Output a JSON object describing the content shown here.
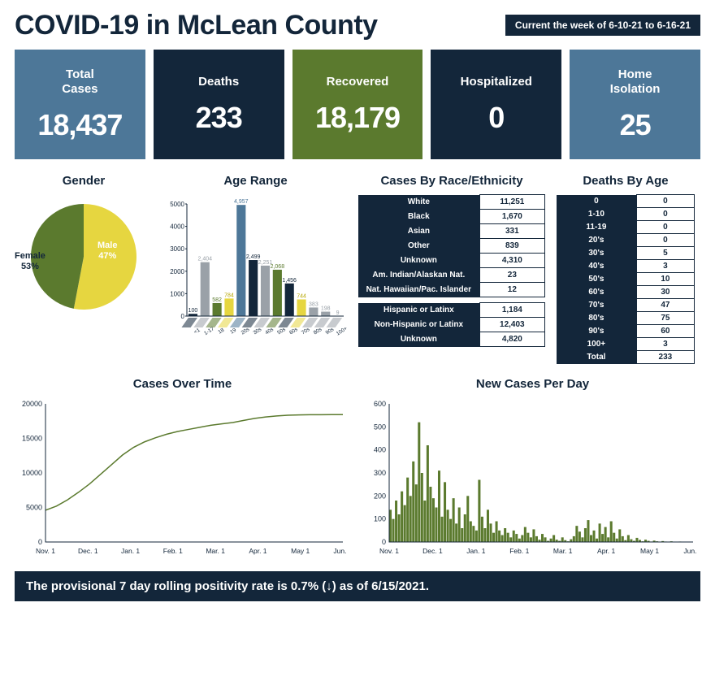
{
  "header": {
    "title": "COVID-19 in McLean County",
    "date_badge": "Current the week of 6-10-21 to 6-16-21"
  },
  "stats": [
    {
      "label": "Total\nCases",
      "value": "18,437",
      "bg": "#4d7798"
    },
    {
      "label": "Deaths",
      "value": "233",
      "bg": "#13263a"
    },
    {
      "label": "Recovered",
      "value": "18,179",
      "bg": "#5b7a2e"
    },
    {
      "label": "Hospitalized",
      "value": "0",
      "bg": "#13263a"
    },
    {
      "label": "Home\nIsolation",
      "value": "25",
      "bg": "#4d7798"
    }
  ],
  "gender": {
    "title": "Gender",
    "slices": [
      {
        "label": "Female",
        "pct": 53,
        "color": "#e6d640"
      },
      {
        "label": "Male",
        "pct": 47,
        "color": "#5b7a2e"
      }
    ]
  },
  "age_range": {
    "title": "Age Range",
    "type": "bar",
    "ylim": [
      0,
      5000
    ],
    "ytick_step": 1000,
    "categories": [
      "<1",
      "1-17",
      "18",
      "19",
      "20s",
      "30s",
      "40s",
      "50s",
      "60s",
      "70s",
      "80s",
      "90s",
      "100+"
    ],
    "values": [
      100,
      2404,
      582,
      784,
      4957,
      2499,
      2251,
      2068,
      1456,
      744,
      383,
      198,
      9
    ],
    "colors": [
      "#13263a",
      "#9aa1a8",
      "#5b7a2e",
      "#e6d640",
      "#4d7798",
      "#13263a",
      "#9aa1a8",
      "#5b7a2e",
      "#13263a",
      "#e6d640",
      "#9aa1a8",
      "#9aa1a8",
      "#9aa1a8"
    ],
    "label_fontsize": 7,
    "axis_color": "#13263a",
    "background": "#ffffff"
  },
  "race": {
    "title": "Cases By Race/Ethnicity",
    "rows": [
      {
        "label": "White",
        "value": "11,251"
      },
      {
        "label": "Black",
        "value": "1,670"
      },
      {
        "label": "Asian",
        "value": "331"
      },
      {
        "label": "Other",
        "value": "839"
      },
      {
        "label": "Unknown",
        "value": "4,310"
      },
      {
        "label": "Am. Indian/Alaskan Nat.",
        "value": "23"
      },
      {
        "label": "Nat. Hawaiian/Pac. Islander",
        "value": "12"
      }
    ],
    "rows2": [
      {
        "label": "Hispanic or Latinx",
        "value": "1,184"
      },
      {
        "label": "Non-Hispanic or Latinx",
        "value": "12,403"
      },
      {
        "label": "Unknown",
        "value": "4,820"
      }
    ]
  },
  "deaths_by_age": {
    "title": "Deaths By Age",
    "rows": [
      {
        "label": "0",
        "value": "0"
      },
      {
        "label": "1-10",
        "value": "0"
      },
      {
        "label": "11-19",
        "value": "0"
      },
      {
        "label": "20's",
        "value": "0"
      },
      {
        "label": "30's",
        "value": "5"
      },
      {
        "label": "40's",
        "value": "3"
      },
      {
        "label": "50's",
        "value": "10"
      },
      {
        "label": "60's",
        "value": "30"
      },
      {
        "label": "70's",
        "value": "47"
      },
      {
        "label": "80's",
        "value": "75"
      },
      {
        "label": "90's",
        "value": "60"
      },
      {
        "label": "100+",
        "value": "3"
      },
      {
        "label": "Total",
        "value": "233"
      }
    ]
  },
  "cases_over_time": {
    "title": "Cases Over Time",
    "type": "line",
    "xlim": [
      "Nov. 1",
      "Jun. 1"
    ],
    "ylim": [
      0,
      20000
    ],
    "ytick_step": 5000,
    "x_ticks": [
      "Nov. 1",
      "Dec. 1",
      "Jan. 1",
      "Feb. 1",
      "Mar. 1",
      "Apr. 1",
      "May 1",
      "Jun. 1"
    ],
    "line_color": "#5b7a2e",
    "axis_color": "#13263a",
    "line_width": 1.5,
    "points_y": [
      4600,
      5200,
      6100,
      7200,
      8400,
      9800,
      11200,
      12600,
      13700,
      14500,
      15100,
      15600,
      16000,
      16300,
      16600,
      16900,
      17100,
      17300,
      17600,
      17900,
      18100,
      18250,
      18350,
      18400,
      18420,
      18430,
      18435,
      18437
    ]
  },
  "new_cases": {
    "title": "New Cases Per Day",
    "type": "bar",
    "xlim": [
      "Nov. 1",
      "Jun. 1"
    ],
    "ylim": [
      0,
      600
    ],
    "ytick_step": 100,
    "x_ticks": [
      "Nov. 1",
      "Dec. 1",
      "Jan. 1",
      "Feb. 1",
      "Mar. 1",
      "Apr. 1",
      "May 1",
      "Jun. 1"
    ],
    "bar_color": "#5b7a2e",
    "axis_color": "#13263a",
    "values": [
      140,
      100,
      180,
      120,
      220,
      160,
      280,
      200,
      350,
      250,
      520,
      300,
      180,
      420,
      240,
      190,
      150,
      310,
      110,
      260,
      140,
      100,
      190,
      80,
      150,
      60,
      120,
      200,
      90,
      70,
      50,
      270,
      110,
      60,
      140,
      80,
      40,
      90,
      50,
      30,
      60,
      40,
      20,
      50,
      35,
      15,
      30,
      65,
      40,
      20,
      55,
      25,
      10,
      35,
      20,
      5,
      15,
      30,
      10,
      5,
      20,
      8,
      3,
      12,
      25,
      70,
      45,
      20,
      60,
      95,
      30,
      50,
      15,
      80,
      35,
      65,
      20,
      90,
      40,
      15,
      55,
      25,
      8,
      30,
      12,
      5,
      18,
      9,
      3,
      10,
      5,
      2,
      6,
      3,
      1,
      4,
      2,
      1,
      3,
      1,
      1,
      2,
      1,
      1,
      1,
      1
    ]
  },
  "footer": "The provisional 7 day rolling positivity rate is 0.7% (↓) as of 6/15/2021."
}
